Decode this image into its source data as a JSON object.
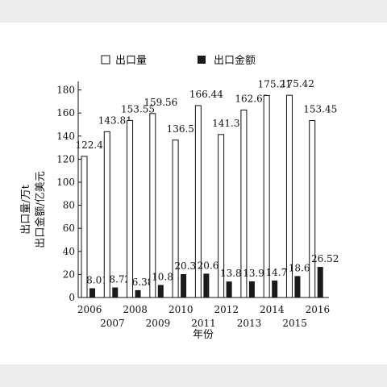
{
  "chart_data": {
    "type": "bar",
    "categories": [
      "2006",
      "2007",
      "2008",
      "2009",
      "2010",
      "2011",
      "2012",
      "2013",
      "2014",
      "2015",
      "2016"
    ],
    "series": [
      {
        "name": "出口量",
        "values": [
          122.42,
          143.81,
          153.55,
          159.56,
          136.52,
          166.44,
          141.37,
          162.62,
          175.21,
          175.42,
          153.45
        ],
        "labels": [
          "122.42",
          "143.81",
          "153.55",
          "159.56",
          "136.52",
          "166.44",
          "141.37",
          "162.62",
          "175.21",
          "175.42",
          "153.45"
        ],
        "fill": "#ffffff"
      },
      {
        "name": "出口金额",
        "values": [
          8.01,
          8.72,
          6.38,
          10.86,
          20.3,
          20.69,
          13.88,
          13.98,
          14.73,
          18.61,
          26.52
        ],
        "labels": [
          "8.01",
          "8.72",
          "6.38",
          "10.86",
          "20.30",
          "20.69",
          "13.88",
          "13.98",
          "14.73",
          "18.61",
          "26.52"
        ],
        "fill": "#1a1a1a"
      }
    ],
    "ylabel_lines": [
      "出口量/万t",
      "出口金额/亿美元"
    ],
    "xlabel": "年份",
    "yticks": [
      0,
      20,
      40,
      60,
      80,
      100,
      120,
      140,
      160,
      180
    ],
    "ylim": [
      0,
      186
    ],
    "legend_position": "top",
    "grid": false
  }
}
